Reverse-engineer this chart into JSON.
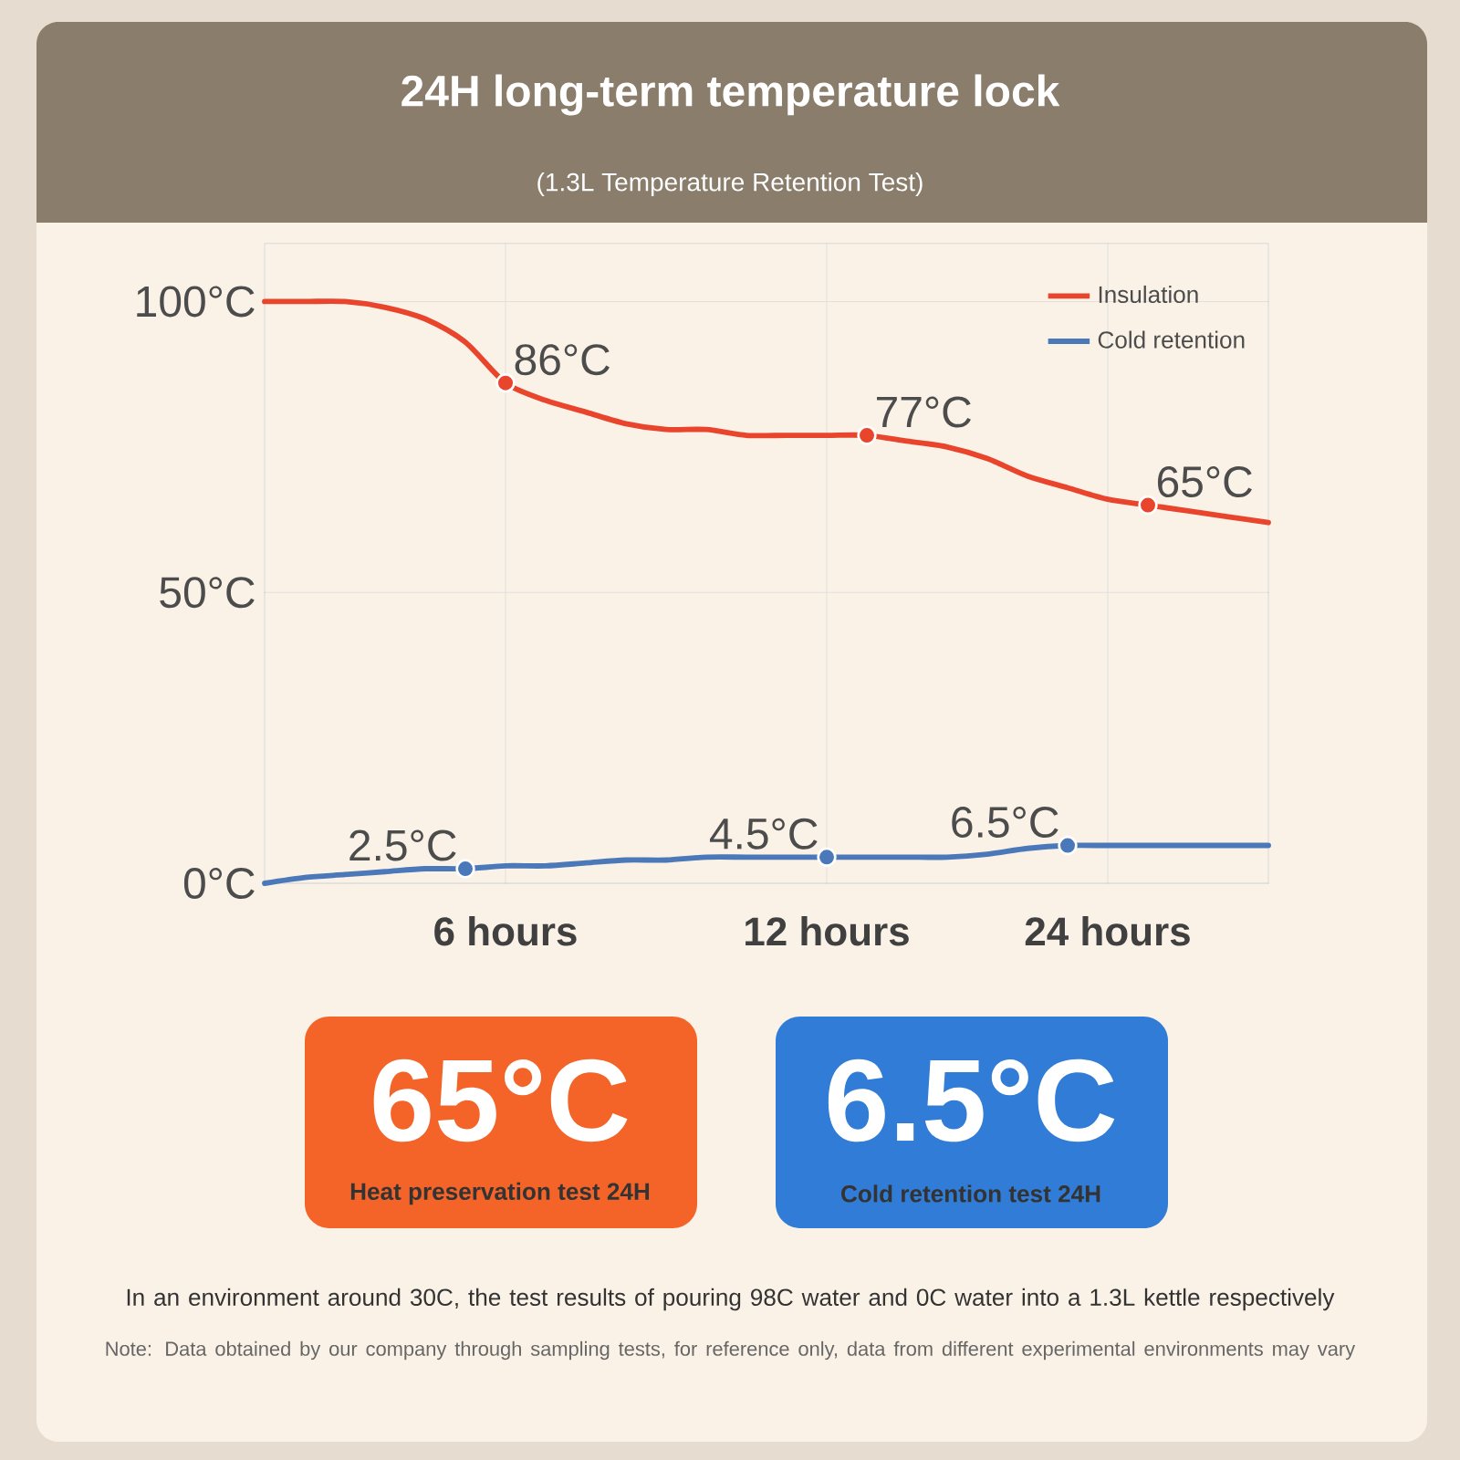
{
  "chart_data": {
    "type": "line",
    "title": "24H long-term temperature lock",
    "subtitle": "(1.3L Temperature Retention Test)",
    "categories": [
      null,
      null,
      null,
      null,
      null,
      null,
      "6 hours",
      null,
      null,
      null,
      null,
      null,
      null,
      null,
      "12 hours",
      null,
      null,
      null,
      null,
      null,
      null,
      "24 hours",
      null,
      null,
      null,
      null
    ],
    "ylim": [
      0,
      110
    ],
    "yticks": [
      {
        "value": 0,
        "label": "0°C"
      },
      {
        "value": 50,
        "label": "50°C"
      },
      {
        "value": 100,
        "label": "100°C"
      }
    ],
    "grid": true,
    "legend": "top right",
    "series": [
      {
        "name": "Insulation",
        "color": "#e8452c",
        "values": [
          100,
          100,
          100,
          99,
          97,
          93,
          86,
          83,
          81,
          79,
          78,
          78,
          77,
          77,
          77,
          77,
          76,
          75,
          73,
          70,
          68,
          66,
          65,
          64,
          63,
          62
        ],
        "value_labels": [
          null,
          null,
          null,
          null,
          null,
          null,
          "86°C",
          null,
          null,
          null,
          null,
          null,
          null,
          null,
          null,
          "77°C",
          null,
          null,
          null,
          null,
          null,
          null,
          "65°C",
          null,
          null,
          null
        ]
      },
      {
        "name": "Cold retention",
        "color": "#4a78b8",
        "values": [
          0,
          1,
          1.5,
          2,
          2.5,
          2.5,
          3,
          3,
          3.5,
          4,
          4,
          4.5,
          4.5,
          4.5,
          4.5,
          4.5,
          4.5,
          4.5,
          5,
          6,
          6.5,
          6.5,
          6.5,
          6.5,
          6.5,
          6.5
        ],
        "value_labels": [
          null,
          null,
          null,
          null,
          null,
          "2.5°C",
          null,
          null,
          null,
          null,
          null,
          null,
          null,
          null,
          "4.5°C",
          null,
          null,
          null,
          null,
          null,
          "6.5°C",
          null,
          null,
          null,
          null,
          null
        ]
      }
    ],
    "annotations": [
      "65°C",
      "Heat preservation test 24H",
      "6.5°C",
      "Cold retention test 24H",
      "In an environment around 30C, the test results of pouring 98C water and 0C water into a 1.3L kettle respectively",
      "Note: Data obtained by our company through sampling tests, for reference only, data from different experimental environments may vary"
    ]
  }
}
